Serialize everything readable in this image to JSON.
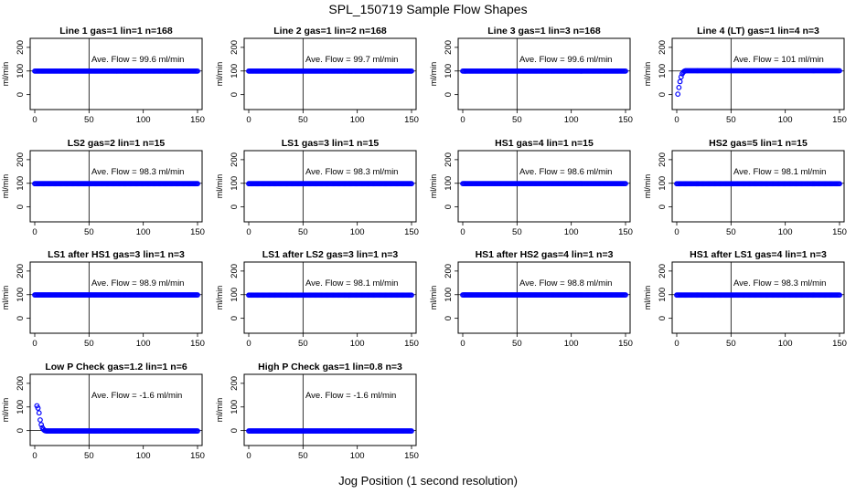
{
  "figure": {
    "title": "SPL_150719  Sample Flow Shapes",
    "xlabel": "Jog Position (1 second resolution)"
  },
  "chart_data": [
    {
      "type": "scatter",
      "title": "Line 1 gas=1 lin=1 n=168",
      "ylabel": "ml/min",
      "annotation": "Ave. Flow =  99.6  ml/min",
      "xlim": [
        0,
        150
      ],
      "ylim": [
        -40,
        215
      ],
      "x_ticks": [
        0,
        50,
        100,
        150
      ],
      "y_ticks": [
        0,
        100,
        200
      ],
      "marker_line_x": 50,
      "ref_line_y": 100,
      "shape": "flat",
      "flat_value": 99.6,
      "marker_color": "#0000ff"
    },
    {
      "type": "scatter",
      "title": "Line 2 gas=1 lin=2 n=168",
      "ylabel": "ml/min",
      "annotation": "Ave. Flow =  99.7  ml/min",
      "xlim": [
        0,
        150
      ],
      "ylim": [
        -40,
        215
      ],
      "x_ticks": [
        0,
        50,
        100,
        150
      ],
      "y_ticks": [
        0,
        100,
        200
      ],
      "marker_line_x": 50,
      "ref_line_y": 100,
      "shape": "flat",
      "flat_value": 99.7,
      "marker_color": "#0000ff"
    },
    {
      "type": "scatter",
      "title": "Line 3 gas=1 lin=3 n=168",
      "ylabel": "ml/min",
      "annotation": "Ave. Flow =  99.6  ml/min",
      "xlim": [
        0,
        150
      ],
      "ylim": [
        -40,
        215
      ],
      "x_ticks": [
        0,
        50,
        100,
        150
      ],
      "y_ticks": [
        0,
        100,
        200
      ],
      "marker_line_x": 50,
      "ref_line_y": 100,
      "shape": "flat",
      "flat_value": 99.6,
      "marker_color": "#0000ff"
    },
    {
      "type": "scatter",
      "title": "Line 4 (LT) gas=1 lin=4 n=3",
      "ylabel": "ml/min",
      "annotation": "Ave. Flow =  101  ml/min",
      "xlim": [
        0,
        150
      ],
      "ylim": [
        -40,
        215
      ],
      "x_ticks": [
        0,
        50,
        100,
        150
      ],
      "y_ticks": [
        0,
        100,
        200
      ],
      "marker_line_x": 50,
      "ref_line_y": 100,
      "shape": "rise",
      "flat_value": 101,
      "lead_points": [
        [
          1,
          2
        ],
        [
          2,
          30
        ],
        [
          3,
          55
        ],
        [
          4,
          75
        ],
        [
          5,
          88
        ],
        [
          6,
          95
        ],
        [
          7,
          99
        ],
        [
          8,
          101
        ]
      ],
      "marker_color": "#0000ff"
    },
    {
      "type": "scatter",
      "title": "LS2 gas=2 lin=1 n=15",
      "ylabel": "ml/min",
      "annotation": "Ave. Flow =  98.3  ml/min",
      "xlim": [
        0,
        150
      ],
      "ylim": [
        -40,
        215
      ],
      "x_ticks": [
        0,
        50,
        100,
        150
      ],
      "y_ticks": [
        0,
        100,
        200
      ],
      "marker_line_x": 50,
      "ref_line_y": 100,
      "shape": "flat",
      "flat_value": 98.3,
      "marker_color": "#0000ff"
    },
    {
      "type": "scatter",
      "title": "LS1 gas=3 lin=1 n=15",
      "ylabel": "ml/min",
      "annotation": "Ave. Flow =  98.3  ml/min",
      "xlim": [
        0,
        150
      ],
      "ylim": [
        -40,
        215
      ],
      "x_ticks": [
        0,
        50,
        100,
        150
      ],
      "y_ticks": [
        0,
        100,
        200
      ],
      "marker_line_x": 50,
      "ref_line_y": 100,
      "shape": "flat",
      "flat_value": 98.3,
      "marker_color": "#0000ff"
    },
    {
      "type": "scatter",
      "title": "HS1 gas=4 lin=1 n=15",
      "ylabel": "ml/min",
      "annotation": "Ave. Flow =  98.6  ml/min",
      "xlim": [
        0,
        150
      ],
      "ylim": [
        -40,
        215
      ],
      "x_ticks": [
        0,
        50,
        100,
        150
      ],
      "y_ticks": [
        0,
        100,
        200
      ],
      "marker_line_x": 50,
      "ref_line_y": 100,
      "shape": "flat",
      "flat_value": 98.6,
      "marker_color": "#0000ff"
    },
    {
      "type": "scatter",
      "title": "HS2 gas=5 lin=1 n=15",
      "ylabel": "ml/min",
      "annotation": "Ave. Flow =  98.1  ml/min",
      "xlim": [
        0,
        150
      ],
      "ylim": [
        -40,
        215
      ],
      "x_ticks": [
        0,
        50,
        100,
        150
      ],
      "y_ticks": [
        0,
        100,
        200
      ],
      "marker_line_x": 50,
      "ref_line_y": 100,
      "shape": "flat",
      "flat_value": 98.1,
      "marker_color": "#0000ff"
    },
    {
      "type": "scatter",
      "title": "LS1 after HS1 gas=3 lin=1 n=3",
      "ylabel": "ml/min",
      "annotation": "Ave. Flow =  98.9  ml/min",
      "xlim": [
        0,
        150
      ],
      "ylim": [
        -40,
        215
      ],
      "x_ticks": [
        0,
        50,
        100,
        150
      ],
      "y_ticks": [
        0,
        100,
        200
      ],
      "marker_line_x": 50,
      "ref_line_y": 100,
      "shape": "flat",
      "flat_value": 98.9,
      "marker_color": "#0000ff"
    },
    {
      "type": "scatter",
      "title": "LS1 after LS2 gas=3 lin=1 n=3",
      "ylabel": "ml/min",
      "annotation": "Ave. Flow =  98.1  ml/min",
      "xlim": [
        0,
        150
      ],
      "ylim": [
        -40,
        215
      ],
      "x_ticks": [
        0,
        50,
        100,
        150
      ],
      "y_ticks": [
        0,
        100,
        200
      ],
      "marker_line_x": 50,
      "ref_line_y": 100,
      "shape": "flat",
      "flat_value": 98.1,
      "marker_color": "#0000ff"
    },
    {
      "type": "scatter",
      "title": "HS1 after HS2 gas=4 lin=1 n=3",
      "ylabel": "ml/min",
      "annotation": "Ave. Flow =  98.8  ml/min",
      "xlim": [
        0,
        150
      ],
      "ylim": [
        -40,
        215
      ],
      "x_ticks": [
        0,
        50,
        100,
        150
      ],
      "y_ticks": [
        0,
        100,
        200
      ],
      "marker_line_x": 50,
      "ref_line_y": 100,
      "shape": "flat",
      "flat_value": 98.8,
      "marker_color": "#0000ff"
    },
    {
      "type": "scatter",
      "title": "HS1 after LS1 gas=4 lin=1 n=3",
      "ylabel": "ml/min",
      "annotation": "Ave. Flow =  98.3  ml/min",
      "xlim": [
        0,
        150
      ],
      "ylim": [
        -40,
        215
      ],
      "x_ticks": [
        0,
        50,
        100,
        150
      ],
      "y_ticks": [
        0,
        100,
        200
      ],
      "marker_line_x": 50,
      "ref_line_y": 100,
      "shape": "flat",
      "flat_value": 98.3,
      "marker_color": "#0000ff"
    },
    {
      "type": "scatter",
      "title": "Low P Check gas=1.2 lin=1 n=6",
      "ylabel": "ml/min",
      "annotation": "Ave. Flow =  -1.6  ml/min",
      "xlim": [
        0,
        150
      ],
      "ylim": [
        -40,
        215
      ],
      "x_ticks": [
        0,
        50,
        100,
        150
      ],
      "y_ticks": [
        0,
        100,
        200
      ],
      "marker_line_x": 50,
      "ref_line_y": 0,
      "shape": "fall",
      "flat_value": -1.6,
      "lead_points": [
        [
          2,
          105
        ],
        [
          3,
          95
        ],
        [
          4,
          75
        ],
        [
          5,
          45
        ],
        [
          6,
          25
        ],
        [
          7,
          12
        ],
        [
          8,
          5
        ],
        [
          9,
          1
        ],
        [
          10,
          -1
        ]
      ],
      "marker_color": "#0000ff"
    },
    {
      "type": "scatter",
      "title": "High P Check gas=1 lin=0.8 n=3",
      "ylabel": "ml/min",
      "annotation": "Ave. Flow =  -1.6  ml/min",
      "xlim": [
        0,
        150
      ],
      "ylim": [
        -40,
        215
      ],
      "x_ticks": [
        0,
        50,
        100,
        150
      ],
      "y_ticks": [
        0,
        100,
        200
      ],
      "marker_line_x": 50,
      "ref_line_y": 0,
      "shape": "flat",
      "flat_value": -1.6,
      "marker_color": "#0000ff"
    }
  ]
}
